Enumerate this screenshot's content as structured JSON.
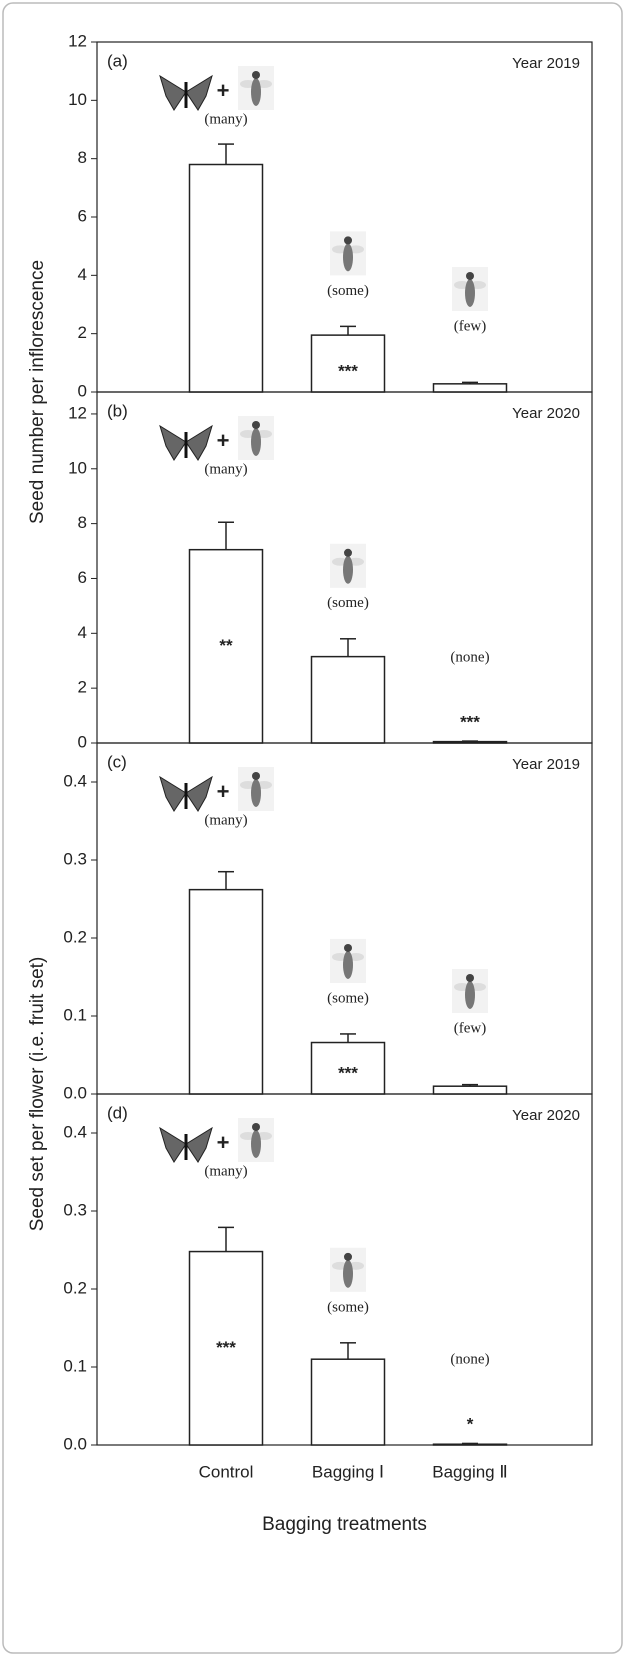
{
  "chart_data": [
    {
      "type": "bar",
      "panel_label": "(a)",
      "annotation": "Year 2019",
      "ylabel": "Seed number per inflorescence",
      "values": [
        7.8,
        1.95,
        0.28
      ],
      "errors": [
        0.7,
        0.3,
        0.05
      ],
      "significance": [
        null,
        "***",
        null
      ],
      "pollinators": [
        "(many)",
        "(some)",
        "(few)"
      ],
      "plus": "+",
      "ylim": [
        0,
        12
      ],
      "yticks": [
        0,
        2,
        4,
        6,
        8,
        10,
        12
      ],
      "color": "#ffffff"
    },
    {
      "type": "bar",
      "panel_label": "(b)",
      "annotation": "Year 2020",
      "values": [
        7.05,
        3.15,
        0.05
      ],
      "errors": [
        1.0,
        0.65,
        0.02
      ],
      "significance": [
        "**",
        null,
        "***"
      ],
      "pollinators": [
        "(many)",
        "(some)",
        "(none)"
      ],
      "plus": "+",
      "ylim": [
        0,
        12.8
      ],
      "yticks": [
        0,
        2,
        4,
        6,
        8,
        10,
        12
      ],
      "color": "#ffffff"
    },
    {
      "type": "bar",
      "panel_label": "(c)",
      "annotation": "Year 2019",
      "ylabel": "Seed set per flower (i.e. fruit set)",
      "values": [
        0.262,
        0.066,
        0.01
      ],
      "errors": [
        0.023,
        0.011,
        0.002
      ],
      "significance": [
        null,
        "***",
        null
      ],
      "pollinators": [
        "(many)",
        "(some)",
        "(few)"
      ],
      "plus": "+",
      "ylim": [
        0,
        0.45
      ],
      "yticks": [
        {
          "value": 0,
          "label": "0.0"
        },
        0.1,
        0.2,
        0.3,
        0.4
      ],
      "color": "#ffffff"
    },
    {
      "type": "bar",
      "panel_label": "(d)",
      "annotation": "Year 2020",
      "xlabel": "Bagging treatments",
      "categories": [
        "Control",
        "Bagging Ⅰ",
        "Bagging Ⅱ"
      ],
      "values": [
        0.248,
        0.11,
        0.001
      ],
      "errors": [
        0.031,
        0.021,
        0.001
      ],
      "significance": [
        "***",
        null,
        "*"
      ],
      "pollinators": [
        "(many)",
        "(some)",
        "(none)"
      ],
      "plus": "+",
      "ylim": [
        0,
        0.45
      ],
      "yticks": [
        {
          "value": 0,
          "label": "0.0"
        },
        0.1,
        0.2,
        0.3,
        0.4
      ],
      "color": "#ffffff"
    }
  ]
}
